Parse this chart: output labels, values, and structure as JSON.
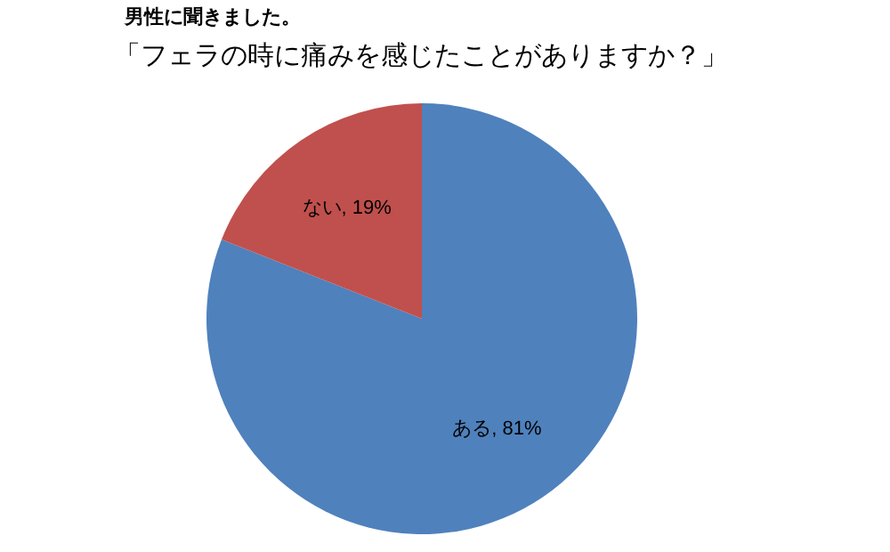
{
  "chart_data": {
    "type": "pie",
    "title": "男性に聞きました。",
    "subtitle": "「フェラの時に痛みを感じたことがありますか？」",
    "categories": [
      "ある",
      "ない"
    ],
    "values": [
      81,
      19
    ],
    "colors": [
      "#4f81bd",
      "#c0504d"
    ],
    "value_labels": [
      ", 81%",
      ", 19%"
    ],
    "legend": false
  }
}
